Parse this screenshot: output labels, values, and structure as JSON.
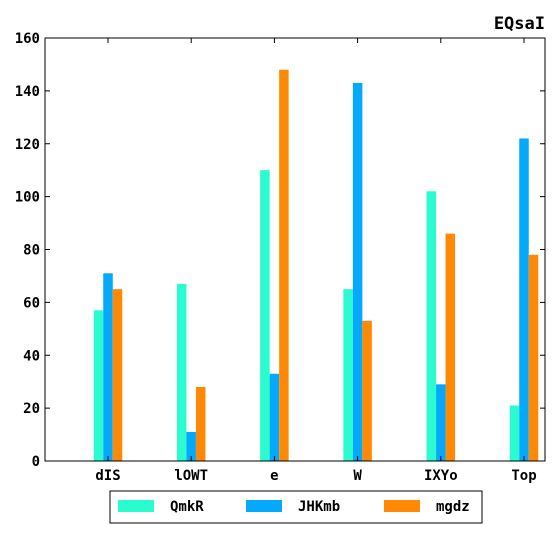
{
  "chart_data": {
    "type": "bar",
    "title": "EQsaI",
    "xlabel": "",
    "ylabel": "",
    "categories": [
      "dIS",
      "lOWT",
      "e",
      "W",
      "IXYo",
      "Top"
    ],
    "series": [
      {
        "name": "QmkR",
        "color": "#2afccf",
        "values": [
          57,
          67,
          110,
          65,
          102,
          21
        ]
      },
      {
        "name": "JHKmb",
        "color": "#04a9fb",
        "values": [
          71,
          11,
          33,
          143,
          29,
          122
        ]
      },
      {
        "name": "mgdz",
        "color": "#ff8804",
        "values": [
          65,
          28,
          148,
          53,
          86,
          78
        ]
      }
    ],
    "ylim": [
      0,
      160
    ],
    "yticks": [
      0,
      20,
      40,
      60,
      80,
      100,
      120,
      140,
      160
    ],
    "grid": false,
    "legend": "bottom-center"
  }
}
